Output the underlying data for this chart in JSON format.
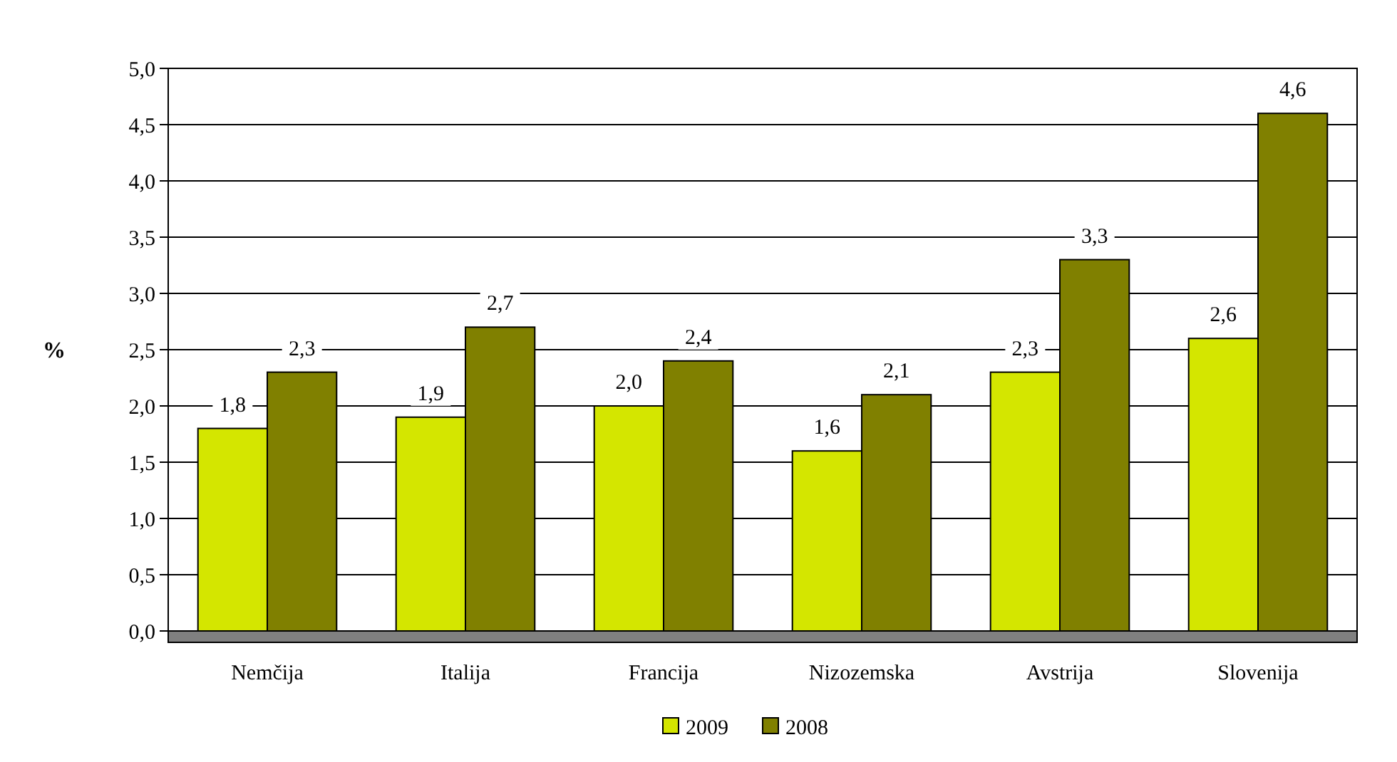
{
  "chart_data": {
    "type": "bar",
    "ylabel": "%",
    "categories": [
      "Nemčija",
      "Italija",
      "Francija",
      "Nizozemska",
      "Avstrija",
      "Slovenija"
    ],
    "series": [
      {
        "name": "2009",
        "color": "#d4e600",
        "values": [
          1.8,
          1.9,
          2.0,
          1.6,
          2.3,
          2.6
        ],
        "value_labels": [
          "1,8",
          "1,9",
          "2,0",
          "1,6",
          "2,3",
          "2,6"
        ]
      },
      {
        "name": "2008",
        "color": "#808000",
        "values": [
          2.3,
          2.7,
          2.4,
          2.1,
          3.3,
          4.6
        ],
        "value_labels": [
          "2,3",
          "2,7",
          "2,4",
          "2,1",
          "3,3",
          "4,6"
        ]
      }
    ],
    "ylim": [
      0,
      5
    ],
    "yticks": [
      {
        "value": 0,
        "label": "0,0"
      },
      {
        "value": 0.5,
        "label": "0,5"
      },
      {
        "value": 1,
        "label": "1,0"
      },
      {
        "value": 1.5,
        "label": "1,5"
      },
      {
        "value": 2,
        "label": "2,0"
      },
      {
        "value": 2.5,
        "label": "2,5"
      },
      {
        "value": 3,
        "label": "3,0"
      },
      {
        "value": 3.5,
        "label": "3,5"
      },
      {
        "value": 4,
        "label": "4,0"
      },
      {
        "value": 4.5,
        "label": "4,5"
      },
      {
        "value": 5,
        "label": "5,0"
      }
    ],
    "grid": "y",
    "legend": "bottom"
  }
}
